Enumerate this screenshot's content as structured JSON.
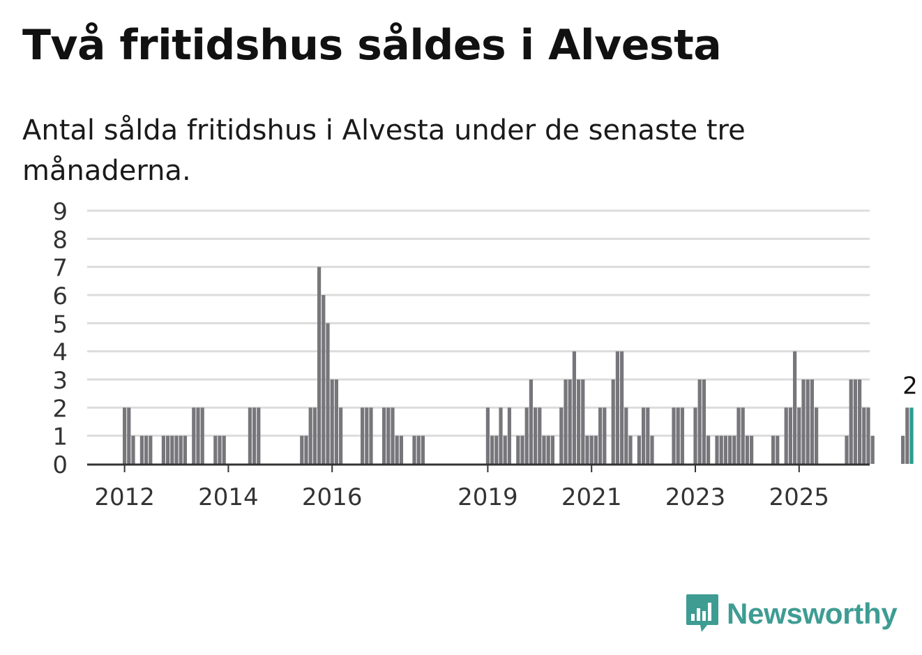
{
  "title": "Två fritidshus såldes i Alvesta",
  "subtitle": "Antal sålda fritidshus i Alvesta under de senaste tre månaderna.",
  "brand": {
    "name": "Newsworthy",
    "color": "#3e9c93",
    "icon": "newsworthy-logo-icon"
  },
  "colors": {
    "bar": "#76767b",
    "highlight": "#2a9d8f",
    "grid": "#dcdcdc",
    "axis": "#333333"
  },
  "chart_data": {
    "type": "bar",
    "x_start": "2012-01",
    "x_end": "2025-07",
    "ylim": [
      0,
      9
    ],
    "y_ticks": [
      0,
      1,
      2,
      3,
      4,
      5,
      6,
      7,
      8,
      9
    ],
    "x_ticks": [
      {
        "label": "2012",
        "month": "2012-01"
      },
      {
        "label": "2014",
        "month": "2014-01"
      },
      {
        "label": "2016",
        "month": "2016-01"
      },
      {
        "label": "2019",
        "month": "2019-01"
      },
      {
        "label": "2021",
        "month": "2021-01"
      },
      {
        "label": "2023",
        "month": "2023-01"
      },
      {
        "label": "2025",
        "month": "2025-01"
      }
    ],
    "grid": true,
    "values": [
      2,
      2,
      1,
      0,
      1,
      1,
      1,
      0,
      0,
      1,
      1,
      1,
      1,
      1,
      1,
      0,
      2,
      2,
      2,
      0,
      0,
      1,
      1,
      1,
      0,
      0,
      0,
      0,
      0,
      2,
      2,
      2,
      0,
      0,
      0,
      0,
      0,
      0,
      0,
      0,
      0,
      1,
      1,
      2,
      2,
      7,
      6,
      5,
      3,
      3,
      2,
      0,
      0,
      0,
      0,
      2,
      2,
      2,
      0,
      0,
      2,
      2,
      2,
      1,
      1,
      0,
      0,
      1,
      1,
      1,
      0,
      0,
      0,
      0,
      0,
      0,
      0,
      0,
      0,
      0,
      0,
      0,
      0,
      0,
      2,
      1,
      1,
      2,
      1,
      2,
      0,
      1,
      1,
      2,
      3,
      2,
      2,
      1,
      1,
      1,
      0,
      2,
      3,
      3,
      4,
      3,
      3,
      1,
      1,
      1,
      2,
      2,
      0,
      3,
      4,
      4,
      2,
      1,
      0,
      1,
      2,
      2,
      1,
      0,
      0,
      0,
      0,
      2,
      2,
      2,
      0,
      0,
      2,
      3,
      3,
      1,
      0,
      1,
      1,
      1,
      1,
      1,
      2,
      2,
      1,
      1,
      0,
      0,
      0,
      0,
      1,
      1,
      0,
      2,
      2,
      4,
      2,
      3,
      3,
      3,
      2,
      0,
      0,
      0,
      0,
      0,
      0,
      1,
      3,
      3,
      3,
      2,
      2,
      1,
      0,
      0,
      0,
      0,
      0,
      0,
      1,
      2,
      2
    ],
    "highlight": {
      "label": "2"
    }
  }
}
